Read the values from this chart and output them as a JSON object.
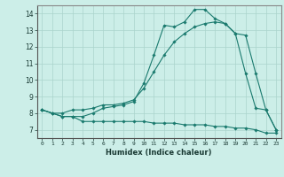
{
  "title": "",
  "xlabel": "Humidex (Indice chaleur)",
  "bg_color": "#cceee8",
  "grid_color": "#aad4cc",
  "line_color": "#1a7a6e",
  "xlim": [
    -0.5,
    23.5
  ],
  "ylim": [
    6.5,
    14.5
  ],
  "xticks": [
    0,
    1,
    2,
    3,
    4,
    5,
    6,
    7,
    8,
    9,
    10,
    11,
    12,
    13,
    14,
    15,
    16,
    17,
    18,
    19,
    20,
    21,
    22,
    23
  ],
  "yticks": [
    7,
    8,
    9,
    10,
    11,
    12,
    13,
    14
  ],
  "line1_x": [
    0,
    1,
    2,
    3,
    4,
    5,
    6,
    7,
    8,
    9,
    10,
    11,
    12,
    13,
    14,
    15,
    16,
    17,
    18,
    19,
    20,
    21,
    22,
    23
  ],
  "line1_y": [
    8.2,
    8.0,
    7.8,
    7.8,
    7.5,
    7.5,
    7.5,
    7.5,
    7.5,
    7.5,
    7.5,
    7.4,
    7.4,
    7.4,
    7.3,
    7.3,
    7.3,
    7.2,
    7.2,
    7.1,
    7.1,
    7.0,
    6.8,
    6.8
  ],
  "line2_x": [
    0,
    1,
    2,
    3,
    4,
    5,
    6,
    7,
    8,
    9,
    10,
    11,
    12,
    13,
    14,
    15,
    16,
    17,
    18,
    19,
    20,
    21,
    22,
    23
  ],
  "line2_y": [
    8.2,
    8.0,
    8.0,
    8.2,
    8.2,
    8.3,
    8.5,
    8.5,
    8.6,
    8.8,
    9.5,
    10.5,
    11.5,
    12.3,
    12.8,
    13.2,
    13.4,
    13.5,
    13.4,
    12.8,
    12.7,
    10.4,
    8.2,
    7.0
  ],
  "line3_x": [
    0,
    1,
    2,
    3,
    4,
    5,
    6,
    7,
    8,
    9,
    10,
    11,
    12,
    13,
    14,
    15,
    16,
    17,
    18,
    19,
    20,
    21,
    22,
    23
  ],
  "line3_y": [
    8.2,
    8.0,
    7.8,
    7.8,
    7.8,
    8.0,
    8.3,
    8.4,
    8.5,
    8.7,
    9.8,
    11.5,
    13.3,
    13.2,
    13.5,
    14.25,
    14.25,
    13.7,
    13.4,
    12.8,
    10.4,
    8.3,
    8.2,
    7.0
  ]
}
